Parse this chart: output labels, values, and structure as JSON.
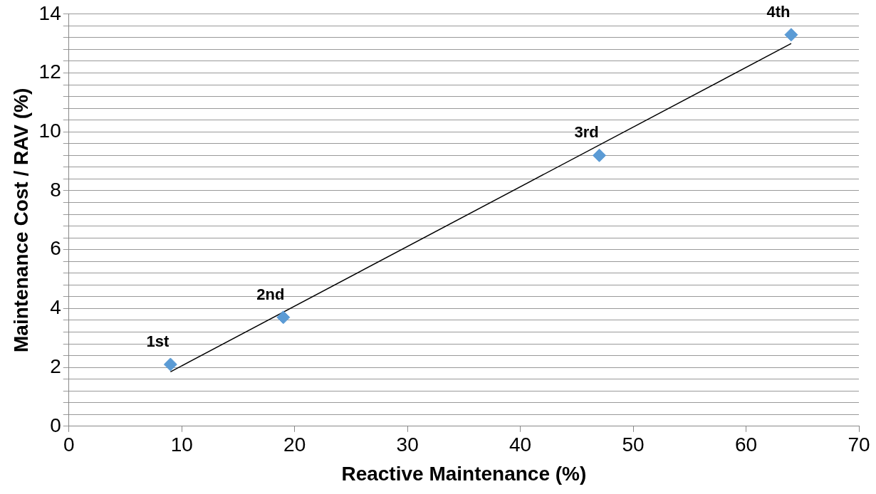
{
  "chart_data": {
    "type": "scatter",
    "xlabel": "Reactive Maintenance (%)",
    "ylabel": "Maintenance Cost / RAV (%)",
    "series": [
      {
        "color": "#5b9bd5",
        "x": [
          9,
          19,
          47,
          64
        ],
        "values": [
          2.1,
          3.7,
          9.2,
          13.3
        ]
      },
      {
        "type": "line",
        "color": "#000000",
        "x": [
          9,
          64
        ],
        "values": [
          1.85,
          13.0
        ],
        "marker": "none"
      }
    ],
    "marker": "diamond",
    "annotations": [
      {
        "text": "1st",
        "x": 9,
        "y": 2.1
      },
      {
        "text": "2nd",
        "x": 19,
        "y": 3.7
      },
      {
        "text": "3rd",
        "x": 47,
        "y": 9.2
      },
      {
        "text": "4th",
        "x": 64,
        "y": 13.3
      }
    ],
    "xlim": [
      0,
      70
    ],
    "xticks": [
      0,
      10,
      20,
      30,
      40,
      50,
      60,
      70
    ],
    "ylim": [
      0,
      14
    ],
    "yticks": [
      0,
      {
        "value": 0.4,
        "label": null
      },
      {
        "value": 0.8,
        "label": null
      },
      {
        "value": 1.2,
        "label": null
      },
      {
        "value": 1.6,
        "label": null
      },
      2,
      {
        "value": 2.4,
        "label": null
      },
      {
        "value": 2.8,
        "label": null
      },
      {
        "value": 3.2,
        "label": null
      },
      {
        "value": 3.6,
        "label": null
      },
      4,
      {
        "value": 4.4,
        "label": null
      },
      {
        "value": 4.8,
        "label": null
      },
      {
        "value": 5.2,
        "label": null
      },
      {
        "value": 5.6,
        "label": null
      },
      6,
      {
        "value": 6.4,
        "label": null
      },
      {
        "value": 6.8,
        "label": null
      },
      {
        "value": 7.2,
        "label": null
      },
      {
        "value": 7.6,
        "label": null
      },
      8,
      {
        "value": 8.4,
        "label": null
      },
      {
        "value": 8.8,
        "label": null
      },
      {
        "value": 9.2,
        "label": null
      },
      {
        "value": 9.6,
        "label": null
      },
      10,
      {
        "value": 10.4,
        "label": null
      },
      {
        "value": 10.8,
        "label": null
      },
      {
        "value": 11.2,
        "label": null
      },
      {
        "value": 11.6,
        "label": null
      },
      12,
      {
        "value": 12.4,
        "label": null
      },
      {
        "value": 12.8,
        "label": null
      },
      {
        "value": 13.2,
        "label": null
      },
      {
        "value": 13.6,
        "label": null
      },
      14
    ],
    "grid": "y",
    "legend": false
  }
}
